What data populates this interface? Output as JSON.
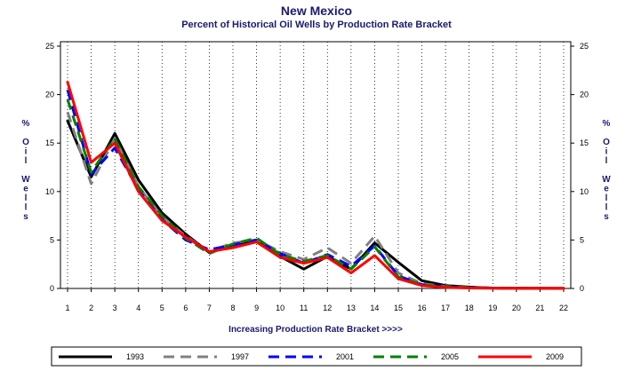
{
  "chart_data": {
    "type": "line",
    "title": "New Mexico",
    "subtitle": "Percent of Historical Oil Wells by Production Rate Bracket",
    "xlabel": "Increasing Production Rate Bracket >>>>",
    "ylabel": "% Oil Wells",
    "x": [
      1,
      2,
      3,
      4,
      5,
      6,
      7,
      8,
      9,
      10,
      11,
      12,
      13,
      14,
      15,
      16,
      17,
      18,
      19,
      20,
      21,
      22
    ],
    "xlim": [
      1,
      22
    ],
    "ylim": [
      0,
      25
    ],
    "yticks": [
      0,
      5,
      10,
      15,
      20,
      25
    ],
    "grid": true,
    "legend_position": "bottom",
    "series": [
      {
        "name": "1993",
        "color": "#000000",
        "dash": "solid",
        "values": [
          17.3,
          11.5,
          16.0,
          11.2,
          7.8,
          5.6,
          3.7,
          4.5,
          4.9,
          3.3,
          2.0,
          3.3,
          2.0,
          4.7,
          2.7,
          0.8,
          0.3,
          0.15,
          0.05,
          0.03,
          0.02,
          0.01
        ]
      },
      {
        "name": "1997",
        "color": "#808080",
        "dash": "dashed",
        "values": [
          18.2,
          10.8,
          15.5,
          10.5,
          7.4,
          5.4,
          3.8,
          4.7,
          5.0,
          3.8,
          3.0,
          4.2,
          2.6,
          5.4,
          1.6,
          0.5,
          0.2,
          0.1,
          0.05,
          0.02,
          0.01,
          0.01
        ]
      },
      {
        "name": "2001",
        "color": "#0000ff",
        "dash": "dashed",
        "values": [
          20.5,
          11.8,
          14.5,
          10.2,
          7.1,
          5.0,
          4.0,
          4.5,
          5.0,
          3.6,
          2.6,
          3.5,
          2.3,
          4.4,
          1.3,
          0.4,
          0.15,
          0.08,
          0.03,
          0.02,
          0.01,
          0.01
        ]
      },
      {
        "name": "2005",
        "color": "#008000",
        "dash": "dashed",
        "values": [
          19.5,
          12.0,
          15.5,
          10.5,
          7.5,
          5.2,
          3.6,
          4.6,
          5.2,
          3.5,
          2.8,
          3.4,
          2.0,
          4.3,
          1.2,
          0.4,
          0.15,
          0.08,
          0.03,
          0.02,
          0.01,
          0.01
        ]
      },
      {
        "name": "2009",
        "color": "#ff0000",
        "dash": "solid",
        "values": [
          21.3,
          13.0,
          15.0,
          10.0,
          7.0,
          5.3,
          3.8,
          4.2,
          4.8,
          3.2,
          2.6,
          3.2,
          1.6,
          3.4,
          1.0,
          0.3,
          0.1,
          0.05,
          0.02,
          0.01,
          0.01,
          0.01
        ]
      }
    ]
  }
}
